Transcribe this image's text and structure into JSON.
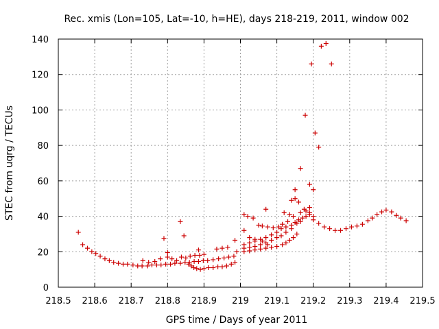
{
  "chart_data": {
    "type": "scatter",
    "title": "Rec. xmis (Lon=105, Lat=-10, h=HE), days 218-219, 2011, window 002",
    "xlabel": "GPS time / Days of year 2011",
    "ylabel": "STEC from uqrg / TECUs",
    "xlim": [
      218.5,
      219.5
    ],
    "ylim": [
      0,
      140
    ],
    "xticks": [
      "218.5",
      "218.6",
      "218.7",
      "218.8",
      "218.9",
      "219",
      "219.1",
      "219.2",
      "219.3",
      "219.4",
      "219.5"
    ],
    "yticks": [
      "0",
      "20",
      "40",
      "60",
      "80",
      "100",
      "120",
      "140"
    ],
    "grid": true,
    "marker": "+",
    "color": "#cc0000",
    "series": [
      {
        "points": [
          [
            218.555,
            31
          ],
          [
            218.567,
            24
          ],
          [
            218.58,
            22
          ],
          [
            218.592,
            20
          ],
          [
            218.603,
            19
          ],
          [
            218.615,
            17.5
          ],
          [
            218.628,
            16
          ],
          [
            218.64,
            15
          ],
          [
            218.652,
            14
          ],
          [
            218.665,
            13.5
          ],
          [
            218.678,
            13
          ],
          [
            218.69,
            13
          ],
          [
            218.705,
            12.5
          ],
          [
            218.718,
            12
          ],
          [
            218.73,
            12
          ],
          [
            218.745,
            12
          ],
          [
            218.757,
            12.5
          ],
          [
            218.77,
            12.5
          ],
          [
            218.782,
            12.5
          ],
          [
            218.795,
            13
          ],
          [
            218.808,
            13
          ],
          [
            218.82,
            13.5
          ],
          [
            218.835,
            13.5
          ],
          [
            218.848,
            14
          ],
          [
            218.86,
            14
          ],
          [
            218.873,
            14.5
          ],
          [
            218.885,
            14.5
          ],
          [
            218.898,
            15
          ],
          [
            218.91,
            15
          ],
          [
            218.925,
            15.5
          ],
          [
            218.94,
            16
          ],
          [
            218.955,
            16.5
          ],
          [
            218.968,
            17
          ],
          [
            218.982,
            17.5
          ],
          [
            218.732,
            15
          ],
          [
            218.748,
            14
          ],
          [
            218.765,
            14.5
          ],
          [
            218.78,
            16
          ],
          [
            218.8,
            17
          ],
          [
            218.812,
            16
          ],
          [
            218.825,
            15
          ],
          [
            218.838,
            17
          ],
          [
            218.85,
            16.5
          ],
          [
            218.862,
            17.5
          ],
          [
            218.875,
            18
          ],
          [
            218.888,
            18
          ],
          [
            218.9,
            18.5
          ],
          [
            218.79,
            27.5
          ],
          [
            218.835,
            37
          ],
          [
            218.845,
            29
          ],
          [
            218.8,
            19.5
          ],
          [
            218.885,
            21
          ],
          [
            218.858,
            13
          ],
          [
            218.865,
            12
          ],
          [
            218.872,
            11
          ],
          [
            218.88,
            10.5
          ],
          [
            218.89,
            10
          ],
          [
            218.9,
            10.5
          ],
          [
            218.912,
            11
          ],
          [
            218.925,
            11
          ],
          [
            218.938,
            11.5
          ],
          [
            218.95,
            11.5
          ],
          [
            218.962,
            12
          ],
          [
            218.975,
            13
          ],
          [
            218.985,
            14
          ],
          [
            218.935,
            21.5
          ],
          [
            218.95,
            22
          ],
          [
            218.965,
            22.5
          ],
          [
            218.985,
            26.5
          ],
          [
            218.99,
            20
          ],
          [
            219.01,
            20
          ],
          [
            219.025,
            20.5
          ],
          [
            219.04,
            21
          ],
          [
            219.055,
            21.5
          ],
          [
            219.07,
            22
          ],
          [
            219.085,
            22.5
          ],
          [
            219.1,
            23
          ],
          [
            219.115,
            24
          ],
          [
            219.125,
            25
          ],
          [
            219.135,
            26.5
          ],
          [
            219.145,
            28
          ],
          [
            219.155,
            30
          ],
          [
            219.01,
            22
          ],
          [
            219.025,
            22.5
          ],
          [
            219.04,
            23
          ],
          [
            219.055,
            24
          ],
          [
            219.07,
            25
          ],
          [
            219.085,
            26.5
          ],
          [
            219.1,
            28
          ],
          [
            219.112,
            29
          ],
          [
            219.125,
            31
          ],
          [
            219.14,
            33
          ],
          [
            219.15,
            36.5
          ],
          [
            219.16,
            38
          ],
          [
            219.17,
            39
          ],
          [
            219.18,
            40
          ],
          [
            219.19,
            41
          ],
          [
            219.2,
            40
          ],
          [
            219.01,
            24
          ],
          [
            219.025,
            25
          ],
          [
            219.04,
            26
          ],
          [
            219.055,
            27
          ],
          [
            219.07,
            28
          ],
          [
            219.085,
            29.5
          ],
          [
            219.1,
            31
          ],
          [
            219.112,
            33
          ],
          [
            219.125,
            34
          ],
          [
            219.14,
            35
          ],
          [
            219.155,
            36
          ],
          [
            219.165,
            37
          ],
          [
            219.01,
            32
          ],
          [
            219.025,
            28
          ],
          [
            219.04,
            27
          ],
          [
            219.06,
            26
          ],
          [
            219.075,
            24
          ],
          [
            219.01,
            41
          ],
          [
            219.02,
            40
          ],
          [
            219.035,
            39
          ],
          [
            219.05,
            35
          ],
          [
            219.06,
            34.5
          ],
          [
            219.075,
            34
          ],
          [
            219.09,
            33.5
          ],
          [
            219.105,
            34
          ],
          [
            219.115,
            35.5
          ],
          [
            219.13,
            37
          ],
          [
            219.145,
            40
          ],
          [
            219.07,
            44
          ],
          [
            219.12,
            42
          ],
          [
            219.135,
            41
          ],
          [
            219.15,
            50
          ],
          [
            219.16,
            48
          ],
          [
            219.14,
            49
          ],
          [
            219.15,
            55
          ],
          [
            219.165,
            42
          ],
          [
            219.175,
            44
          ],
          [
            219.18,
            43
          ],
          [
            219.19,
            42
          ],
          [
            219.165,
            67
          ],
          [
            219.178,
            97
          ],
          [
            219.19,
            58
          ],
          [
            219.2,
            55
          ],
          [
            219.205,
            87
          ],
          [
            219.215,
            79
          ],
          [
            219.195,
            126
          ],
          [
            219.222,
            136
          ],
          [
            219.235,
            137.5
          ],
          [
            219.25,
            126
          ],
          [
            219.19,
            45
          ],
          [
            219.2,
            38
          ],
          [
            219.215,
            36
          ],
          [
            219.23,
            34
          ],
          [
            219.245,
            33
          ],
          [
            219.26,
            32
          ],
          [
            219.275,
            32
          ],
          [
            219.29,
            33
          ],
          [
            219.305,
            34
          ],
          [
            219.32,
            34.5
          ],
          [
            219.335,
            35.5
          ],
          [
            219.35,
            37.5
          ],
          [
            219.362,
            39
          ],
          [
            219.375,
            41
          ],
          [
            219.388,
            42.5
          ],
          [
            219.4,
            43.5
          ],
          [
            219.415,
            42.5
          ],
          [
            219.428,
            40.5
          ],
          [
            219.44,
            39
          ],
          [
            219.455,
            37.5
          ]
        ]
      }
    ]
  }
}
